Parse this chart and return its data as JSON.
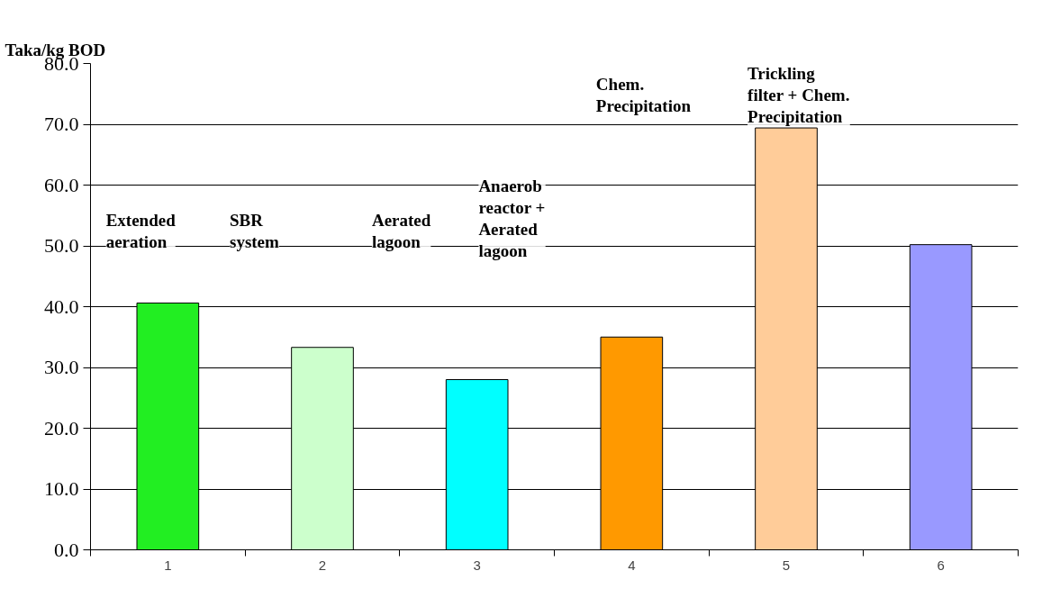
{
  "chart_data": {
    "type": "bar",
    "ylabel": "Taka/kg BOD",
    "categories": [
      "1",
      "2",
      "3",
      "4",
      "5",
      "6"
    ],
    "values": [
      40.6,
      33.3,
      28.0,
      35.0,
      69.4,
      50.2
    ],
    "colors": [
      "#22ee22",
      "#ccffcc",
      "#00ffff",
      "#ff9900",
      "#ffcc99",
      "#9999ff"
    ],
    "ylim": [
      0,
      80
    ],
    "yticks": [
      {
        "value": 0,
        "label": "0.0"
      },
      {
        "value": 10,
        "label": "10.0"
      },
      {
        "value": 20,
        "label": "20.0"
      },
      {
        "value": 30,
        "label": "30.0"
      },
      {
        "value": 40,
        "label": "40.0"
      },
      {
        "value": 50,
        "label": "50.0"
      },
      {
        "value": 60,
        "label": "60.0"
      },
      {
        "value": 70,
        "label": "70.0"
      },
      {
        "value": 80,
        "label": "80.0"
      }
    ],
    "grid": "y",
    "annotations": [
      "Extended\naeration",
      "SBR\nsystem",
      "Aerated\nlagoon",
      "Anaerob\nreactor +\nAerated\nlagoon",
      "Chem.\nPrecipitation",
      "Trickling\nfilter + Chem.\nPrecipitation"
    ]
  }
}
